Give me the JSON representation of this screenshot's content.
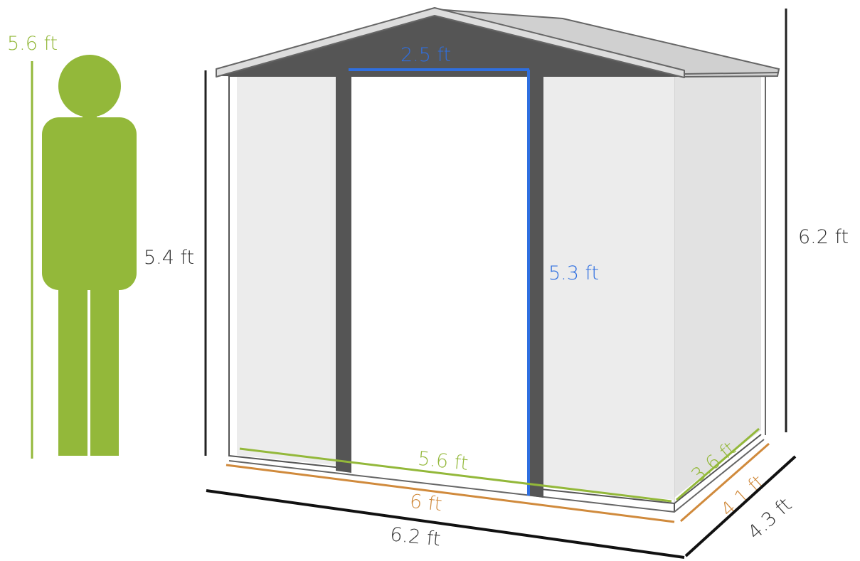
{
  "colors": {
    "green": "#93b83a",
    "orange": "#d08a3c",
    "blue": "#2f6fe0",
    "dark": "#222222",
    "frame": "#555555",
    "roof_dark": "#555555",
    "roof_light": "#cfcfcf",
    "panel": "#ececec",
    "side": "#e0e0e0",
    "door": "#ffffff",
    "human": "#93b83a"
  },
  "human": {
    "height_label": "5.6 ft"
  },
  "shed": {
    "wall_height_label": "5.4 ft",
    "total_height_label": "6.2 ft",
    "door_width_label": "2.5 ft",
    "door_height_label": "5.3 ft",
    "inner_width_label": "5.6 ft",
    "base_width_label": "6 ft",
    "outer_width_label": "6.2 ft",
    "inner_depth_label": "3.6 ft",
    "base_depth_label": "4.1 ft",
    "outer_depth_label": "4.3 ft"
  }
}
